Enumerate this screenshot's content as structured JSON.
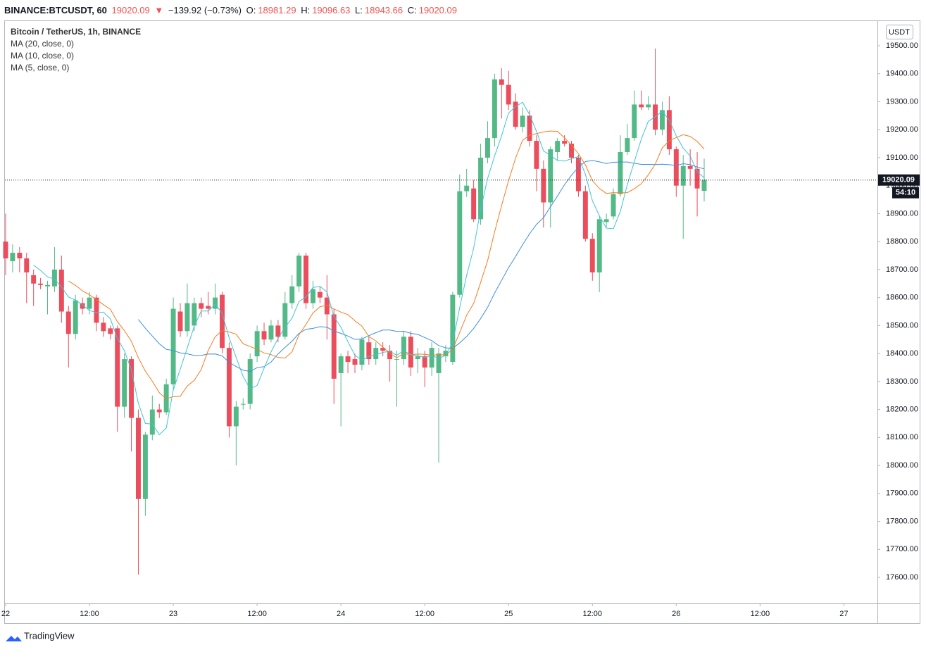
{
  "header": {
    "symbol": "BINANCE:BTCUSDT, 60",
    "price": "19020.09",
    "arrow": "▼",
    "change": "−139.92 (−0.73%)",
    "ohlc": [
      {
        "label": "O:",
        "value": "18981.29"
      },
      {
        "label": "H:",
        "value": "19096.63"
      },
      {
        "label": "L:",
        "value": "18943.66"
      },
      {
        "label": "C:",
        "value": "19020.09"
      }
    ]
  },
  "brand": "TradingView",
  "chart_data": {
    "type": "candlestick",
    "title": "Bitcoin / TetherUS, 1h, BINANCE",
    "x": [
      0,
      1,
      2,
      3,
      4,
      5,
      6,
      7,
      8,
      9,
      10,
      11,
      12,
      13,
      14,
      15,
      16,
      17,
      18,
      19,
      20,
      21,
      22,
      23,
      24,
      25,
      26,
      27,
      28,
      29,
      30,
      31,
      32,
      33,
      34,
      35,
      36,
      37,
      38,
      39,
      40,
      41,
      42,
      43,
      44,
      45,
      46,
      47,
      48,
      49,
      50,
      51,
      52,
      53,
      54,
      55,
      56,
      57,
      58,
      59,
      60,
      61,
      62,
      63,
      64,
      65,
      66,
      67,
      68,
      69,
      70,
      71,
      72,
      73,
      74,
      75,
      76,
      77,
      78,
      79,
      80,
      81,
      82,
      83,
      84,
      85,
      86,
      87,
      88,
      89,
      90,
      91,
      92,
      93,
      94,
      95,
      96,
      97,
      98,
      99,
      100
    ],
    "open": [
      18800,
      18730,
      18760,
      18740,
      18680,
      18650,
      18640,
      18640,
      18700,
      18550,
      18470,
      18580,
      18560,
      18600,
      18510,
      18490,
      18490,
      18210,
      18380,
      18170,
      17880,
      18110,
      18200,
      18190,
      18290,
      18550,
      18480,
      18500,
      18580,
      18570,
      18560,
      18610,
      18420,
      18140,
      18220,
      18220,
      18390,
      18480,
      18450,
      18500,
      18460,
      18580,
      18640,
      18750,
      18580,
      18620,
      18600,
      18540,
      18330,
      18390,
      18380,
      18360,
      18440,
      18380,
      18420,
      18410,
      18380,
      18380,
      18460,
      18380,
      18390,
      18350,
      18330,
      18390,
      18370,
      18610,
      18980,
      18990,
      18880,
      19100,
      19170,
      19380,
      19360,
      19300,
      19210,
      19250,
      19160,
      19060,
      18940,
      19120,
      19160,
      19150,
      19100,
      18980,
      18810,
      18690,
      18870,
      18890,
      18970,
      19120,
      19170,
      19290,
      19280,
      19290,
      19200,
      19270,
      19130,
      19000,
      19070,
      19060,
      18981.29
    ],
    "high": [
      18900,
      18790,
      18780,
      18760,
      18700,
      18670,
      18660,
      18780,
      18750,
      18570,
      18610,
      18600,
      18620,
      18610,
      18530,
      18500,
      18500,
      18400,
      18390,
      18200,
      18120,
      18250,
      18220,
      18310,
      18600,
      18580,
      18650,
      18600,
      18600,
      18620,
      18650,
      18620,
      18440,
      18230,
      18240,
      18400,
      18500,
      18510,
      18520,
      18520,
      18620,
      18680,
      18760,
      18760,
      18660,
      18640,
      18680,
      18560,
      18400,
      18410,
      18400,
      18460,
      18460,
      18440,
      18440,
      18430,
      18410,
      18480,
      18480,
      18420,
      18410,
      18440,
      18420,
      18430,
      18620,
      19040,
      19060,
      19020,
      19150,
      19230,
      19400,
      19420,
      19410,
      19330,
      19280,
      19270,
      19180,
      19090,
      19140,
      19170,
      19180,
      19160,
      19110,
      19000,
      18830,
      18890,
      18900,
      18990,
      19180,
      19220,
      19340,
      19340,
      19320,
      19490,
      19300,
      19320,
      19140,
      19110,
      19130,
      19120,
      19096.63
    ],
    "low": [
      18680,
      18690,
      18690,
      18580,
      18570,
      18630,
      18540,
      18620,
      18510,
      18350,
      18450,
      18540,
      18540,
      18480,
      18460,
      18450,
      18120,
      18170,
      18050,
      17610,
      17820,
      18090,
      18170,
      18180,
      18270,
      18460,
      18460,
      18480,
      18530,
      18540,
      18540,
      18400,
      18100,
      18000,
      18200,
      18200,
      18370,
      18430,
      18440,
      18440,
      18450,
      18560,
      18620,
      18560,
      18560,
      18580,
      18450,
      18220,
      18140,
      18330,
      18330,
      18340,
      18360,
      18360,
      18390,
      18300,
      18210,
      18360,
      18320,
      18330,
      18280,
      18320,
      18010,
      18370,
      18360,
      18600,
      18960,
      18870,
      18860,
      19080,
      19140,
      19240,
      19270,
      19200,
      19190,
      19140,
      18980,
      18850,
      18850,
      19090,
      19140,
      19080,
      18960,
      18800,
      18660,
      18620,
      18850,
      18880,
      18960,
      19110,
      19160,
      19270,
      19270,
      19180,
      19180,
      19110,
      18960,
      18810,
      19000,
      18890,
      18943.66
    ],
    "close": [
      18740,
      18760,
      18740,
      18690,
      18650,
      18645,
      18645,
      18700,
      18550,
      18470,
      18590,
      18560,
      18600,
      18510,
      18480,
      18470,
      18210,
      18380,
      18170,
      17880,
      18110,
      18200,
      18190,
      18290,
      18560,
      18480,
      18580,
      18580,
      18560,
      18560,
      18600,
      18420,
      18140,
      18210,
      18220,
      18380,
      18480,
      18450,
      18500,
      18460,
      18580,
      18640,
      18750,
      18580,
      18630,
      18600,
      18540,
      18310,
      18390,
      18370,
      18360,
      18450,
      18380,
      18420,
      18410,
      18380,
      18380,
      18460,
      18350,
      18390,
      18350,
      18420,
      18400,
      18410,
      18610,
      18980,
      19000,
      18880,
      19100,
      19170,
      19380,
      19360,
      19290,
      19210,
      19250,
      19160,
      19060,
      18940,
      19130,
      19160,
      19150,
      19100,
      18980,
      18810,
      18690,
      18880,
      18880,
      18970,
      19120,
      19170,
      19290,
      19280,
      19290,
      19200,
      19270,
      19130,
      19000,
      19070,
      19060,
      18990,
      19020.09
    ],
    "up_color": "#53b987",
    "down_color": "#eb4d5c",
    "moving_averages": [
      {
        "name": "MA (20, close, 0)",
        "period": 20,
        "color": "#3d8fe0"
      },
      {
        "name": "MA (10, close, 0)",
        "period": 10,
        "color": "#f57c1f"
      },
      {
        "name": "MA (5, close, 0)",
        "period": 5,
        "color": "#3fc4d8"
      }
    ],
    "y_unit": "USDT",
    "last_price": {
      "value": 19020.09,
      "label": "19020.09"
    },
    "countdown": "54:10",
    "xlim": [
      -0.1,
      124.8
    ],
    "xticks": [
      {
        "value": 0,
        "label": "22"
      },
      {
        "value": 12,
        "label": "12:00"
      },
      {
        "value": 24,
        "label": "23"
      },
      {
        "value": 36,
        "label": "12:00"
      },
      {
        "value": 48,
        "label": "24"
      },
      {
        "value": 60,
        "label": "12:00"
      },
      {
        "value": 72,
        "label": "25"
      },
      {
        "value": 84,
        "label": "12:00"
      },
      {
        "value": 96,
        "label": "26"
      },
      {
        "value": 108,
        "label": "12:00"
      },
      {
        "value": 120,
        "label": "27"
      }
    ],
    "ylim": [
      17507,
      19588
    ],
    "yticks": [
      {
        "value": 17600,
        "label": "17600.00"
      },
      {
        "value": 17700,
        "label": "17700.00"
      },
      {
        "value": 17800,
        "label": "17800.00"
      },
      {
        "value": 17900,
        "label": "17900.00"
      },
      {
        "value": 18000,
        "label": "18000.00"
      },
      {
        "value": 18100,
        "label": "18100.00"
      },
      {
        "value": 18200,
        "label": "18200.00"
      },
      {
        "value": 18300,
        "label": "18300.00"
      },
      {
        "value": 18400,
        "label": "18400.00"
      },
      {
        "value": 18500,
        "label": "18500.00"
      },
      {
        "value": 18600,
        "label": "18600.00"
      },
      {
        "value": 18700,
        "label": "18700.00"
      },
      {
        "value": 18800,
        "label": "18800.00"
      },
      {
        "value": 18900,
        "label": "18900.00"
      },
      {
        "value": 19000,
        "label": "19000.00"
      },
      {
        "value": 19100,
        "label": "19100.00"
      },
      {
        "value": 19200,
        "label": "19200.00"
      },
      {
        "value": 19300,
        "label": "19300.00"
      },
      {
        "value": 19400,
        "label": "19400.00"
      },
      {
        "value": 19500,
        "label": "19500.00"
      }
    ],
    "grid": false
  }
}
